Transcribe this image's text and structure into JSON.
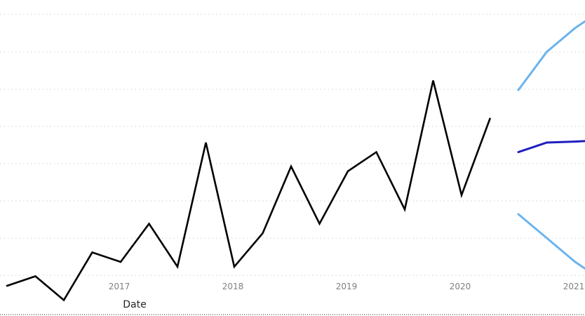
{
  "chart_data": {
    "type": "line",
    "xlabel": "Date",
    "ylabel": "",
    "x_ticks": [
      "2017",
      "2018",
      "2019",
      "2020",
      "2021"
    ],
    "grid": true,
    "x": [
      "2016-01",
      "2016-04",
      "2016-07",
      "2016-10",
      "2017-01",
      "2017-04",
      "2017-07",
      "2017-10",
      "2018-01",
      "2018-04",
      "2018-07",
      "2018-10",
      "2019-01",
      "2019-04",
      "2019-07",
      "2019-10",
      "2020-01",
      "2020-04"
    ],
    "series": [
      {
        "role": "actual",
        "color": "#000000",
        "values": [
          44,
          46,
          41,
          51,
          49,
          57,
          48,
          74,
          48,
          55,
          69,
          57,
          68,
          72,
          60,
          87,
          63,
          79
        ]
      },
      {
        "role": "forecast",
        "color": "#1f1fbf",
        "x": [
          "2020-07",
          "2020-10",
          "2021-01",
          "2021-04"
        ],
        "values": [
          72,
          74,
          74.2,
          74.5
        ]
      },
      {
        "role": "upper-bound",
        "color": "#6cb4ee",
        "x": [
          "2020-07",
          "2020-10",
          "2021-01",
          "2021-04"
        ],
        "values": [
          85,
          93,
          98,
          102
        ]
      },
      {
        "role": "lower-bound",
        "color": "#6cb4ee",
        "x": [
          "2020-07",
          "2020-10",
          "2021-01",
          "2021-04"
        ],
        "values": [
          59,
          54,
          49,
          45
        ]
      }
    ]
  }
}
